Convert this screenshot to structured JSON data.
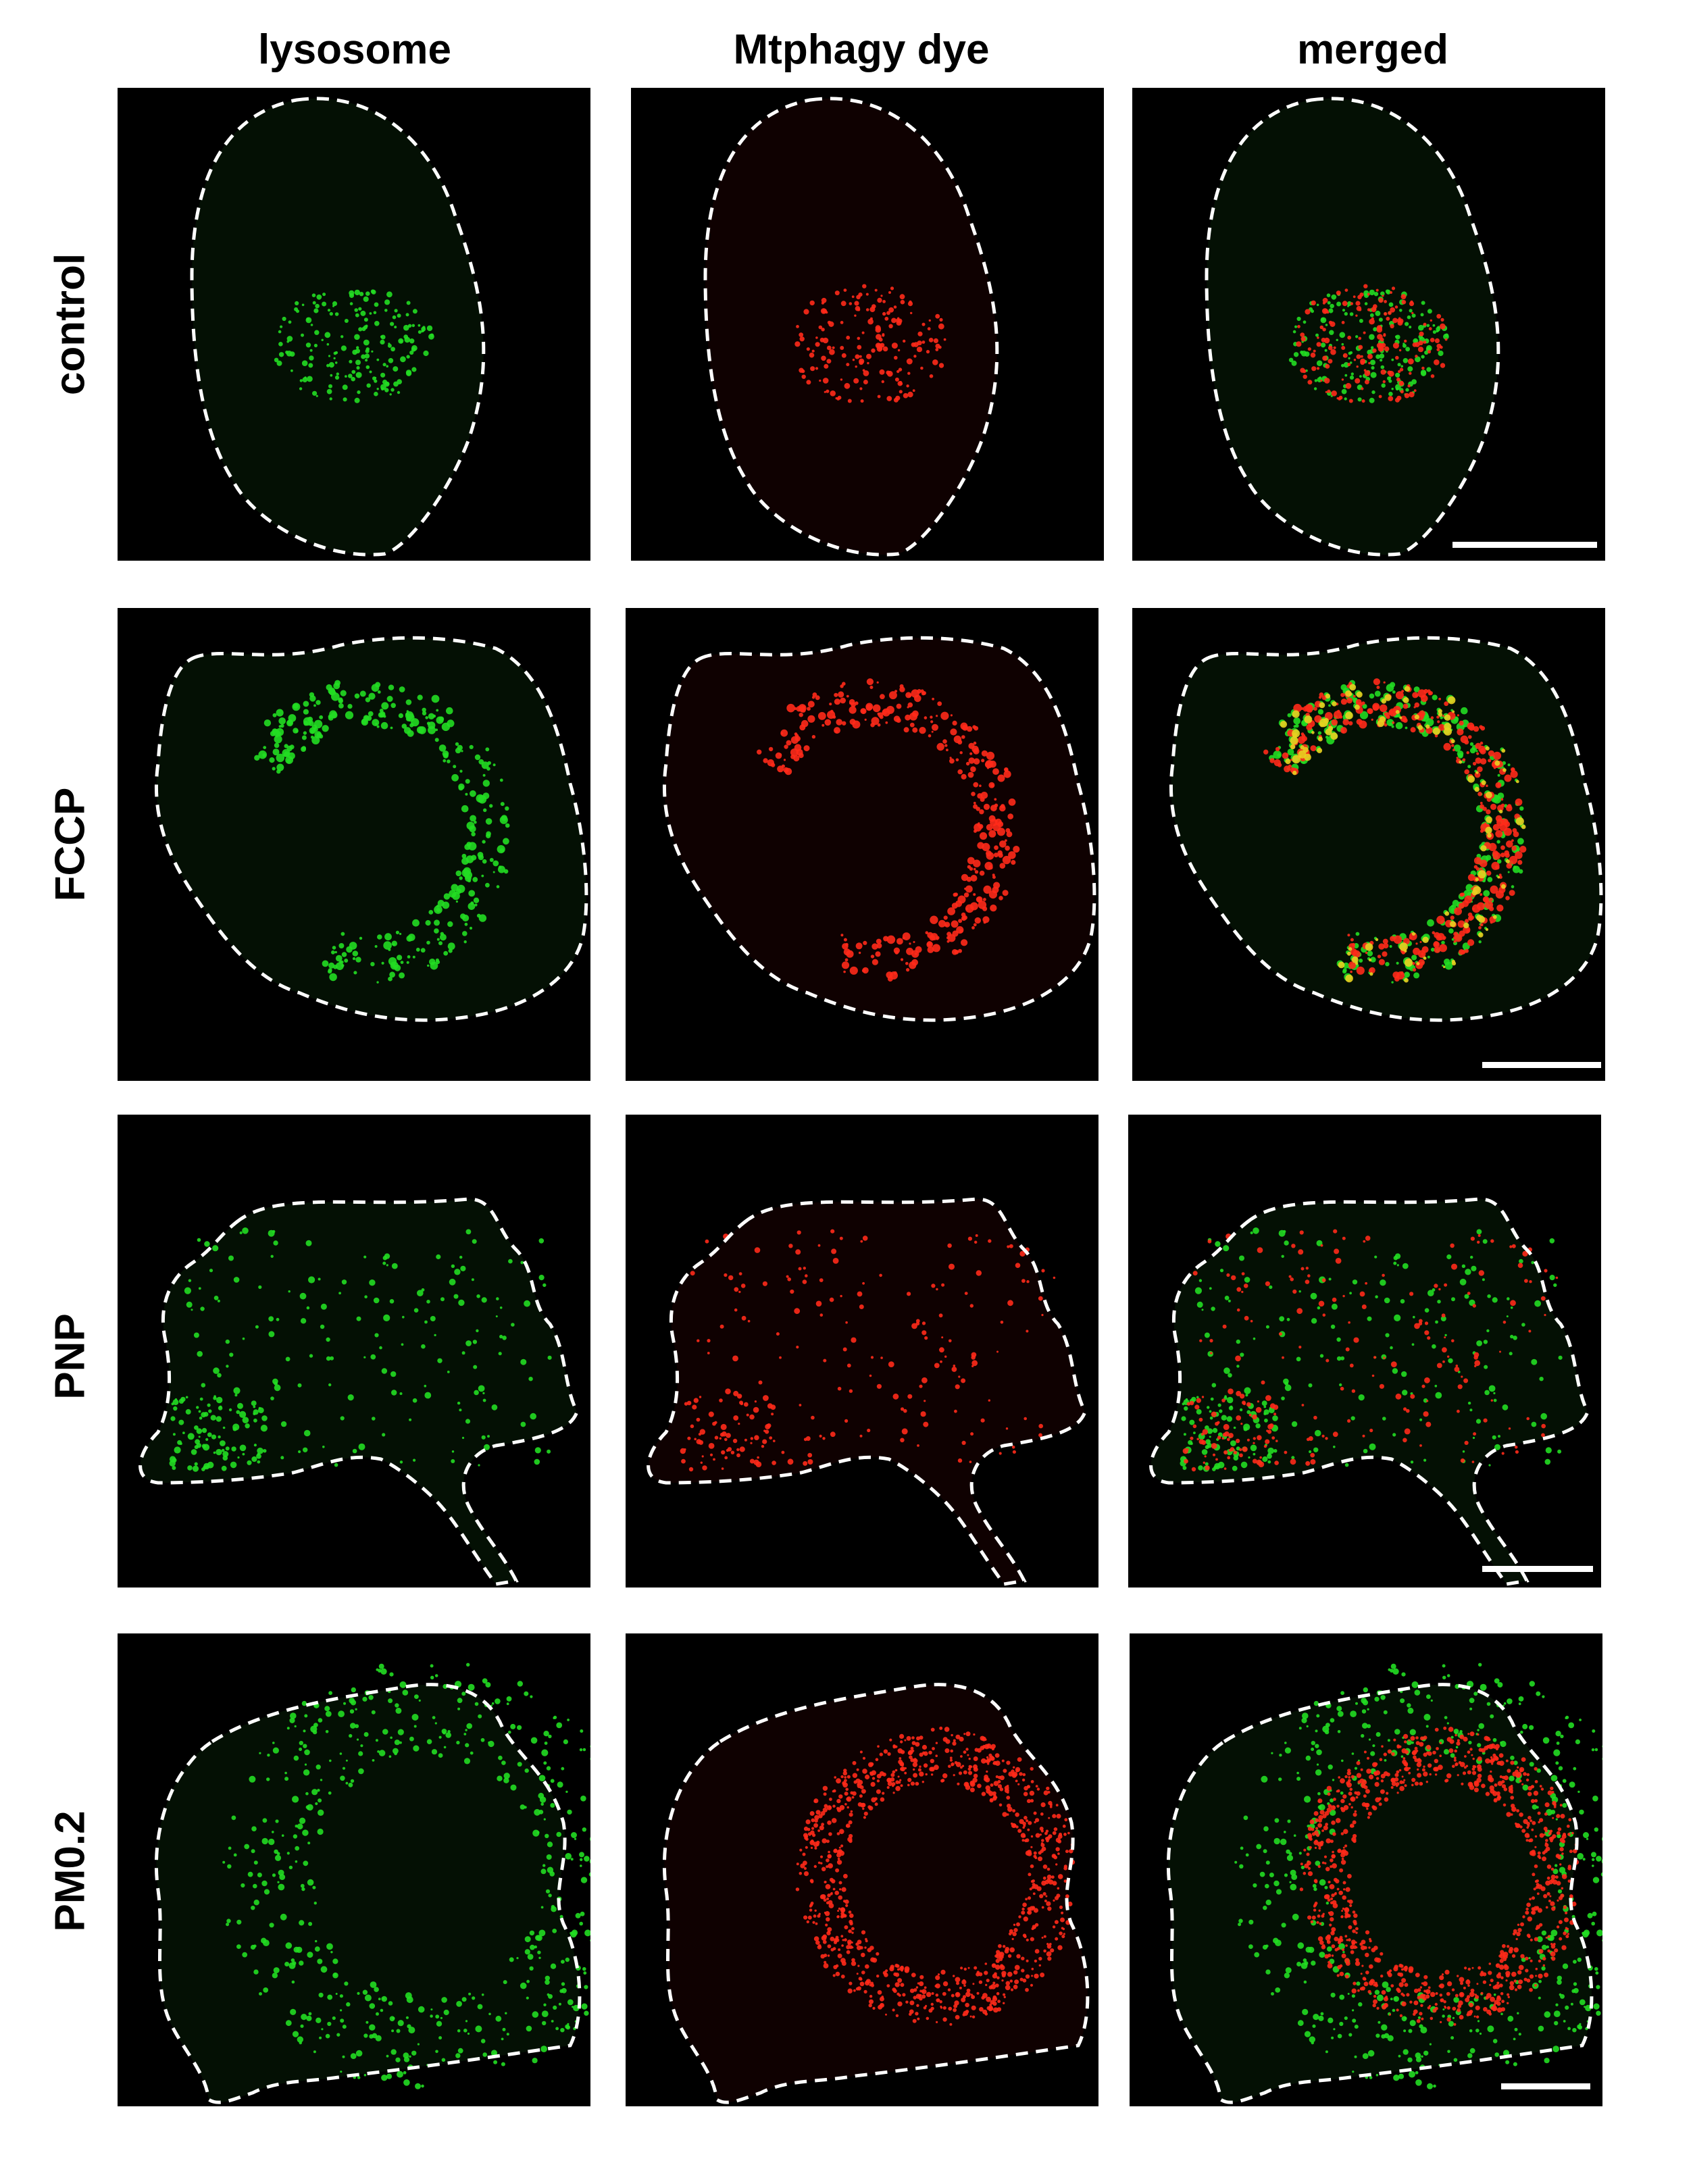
{
  "columns": [
    "lysosome",
    "Mtphagy dye",
    "merged"
  ],
  "rows": [
    "control",
    "FCCP",
    "PNP",
    "PM0.2"
  ],
  "channel_colors": {
    "lysosome": "#22dd22",
    "mtphagy": "#ff2a1a",
    "colocalized": "#e8d020",
    "outline": "#ffffff",
    "background": "#000000"
  },
  "outline_style": "dashed-white",
  "scale_bars": [
    "control-merged",
    "FCCP-merged",
    "PNP-merged",
    "PM0.2-merged"
  ]
}
